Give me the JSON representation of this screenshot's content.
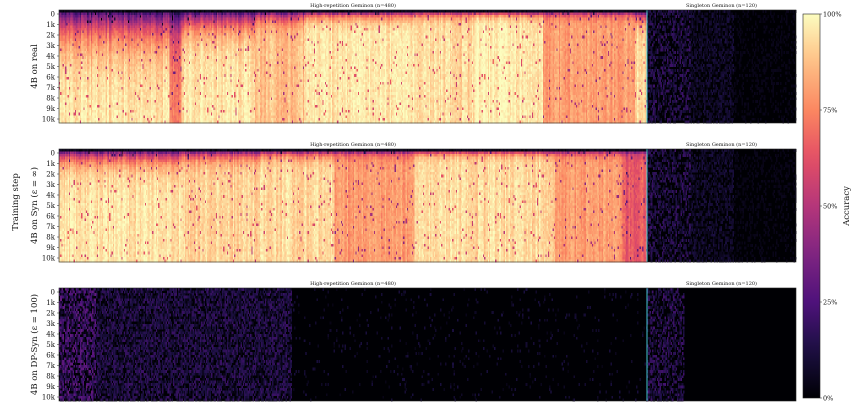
{
  "figure": {
    "shared_ylabel": "Training step"
  },
  "chart_data": {
    "type": "heatmap",
    "colormap": "magma",
    "ytick_labels": [
      "0",
      "1k",
      "2k",
      "3k",
      "4k",
      "5k",
      "6k",
      "7k",
      "8k",
      "9k",
      "10k"
    ],
    "section_titles": [
      "High-repetition Geminon (n=480)",
      "Singleton Geminon (n=120)"
    ],
    "colorbar": {
      "label": "Accuracy",
      "range": [
        0,
        100
      ],
      "tick_values": [
        0,
        25,
        50,
        75,
        100
      ],
      "tick_labels": [
        "0%",
        "25%",
        "50%",
        "75%",
        "100%"
      ]
    },
    "panels": [
      {
        "id": "real",
        "ylabel": "4B on real",
        "high_rep_profile": [
          {
            "from": 0,
            "to": 90,
            "level": 0.96,
            "rise": 0.5
          },
          {
            "from": 90,
            "to": 100,
            "level": 0.75,
            "rise": 0.6
          },
          {
            "from": 100,
            "to": 160,
            "level": 0.96,
            "rise": 0.8
          },
          {
            "from": 160,
            "to": 200,
            "level": 0.88,
            "rise": 1.6
          },
          {
            "from": 200,
            "to": 290,
            "level": 0.96,
            "rise": 2.2
          },
          {
            "from": 290,
            "to": 340,
            "level": 0.93,
            "rise": 2.8
          },
          {
            "from": 340,
            "to": 395,
            "level": 0.97,
            "rise": 3.0
          },
          {
            "from": 395,
            "to": 470,
            "level": 0.8,
            "rise": 3.3
          },
          {
            "from": 470,
            "to": 480,
            "level": 0.93,
            "rise": 1.5
          }
        ],
        "singleton_level": 0.1
      },
      {
        "id": "syn",
        "ylabel": "4B on Syn (ε = ∞)",
        "high_rep_profile": [
          {
            "from": 0,
            "to": 100,
            "level": 0.95,
            "rise": 1.2
          },
          {
            "from": 100,
            "to": 165,
            "level": 0.92,
            "rise": 1.8
          },
          {
            "from": 165,
            "to": 225,
            "level": 0.93,
            "rise": 2.5
          },
          {
            "from": 225,
            "to": 290,
            "level": 0.8,
            "rise": 3.0
          },
          {
            "from": 290,
            "to": 405,
            "level": 0.93,
            "rise": 3.3
          },
          {
            "from": 405,
            "to": 460,
            "level": 0.8,
            "rise": 3.5
          },
          {
            "from": 460,
            "to": 480,
            "level": 0.65,
            "rise": 3.8
          }
        ],
        "singleton_level": 0.1
      },
      {
        "id": "dp",
        "ylabel": "4B on DP-Syn (ε = 100)",
        "high_rep_profile": [
          {
            "from": 0,
            "to": 30,
            "level": 0.26,
            "rise": 0.8
          },
          {
            "from": 30,
            "to": 190,
            "level": 0.17,
            "rise": 1.0
          },
          {
            "from": 190,
            "to": 480,
            "level": 0.0,
            "rise": 1.0
          }
        ],
        "singleton_profile": [
          {
            "from": 0,
            "to": 30,
            "level": 0.14
          },
          {
            "from": 30,
            "to": 120,
            "level": 0.0
          }
        ]
      }
    ]
  }
}
